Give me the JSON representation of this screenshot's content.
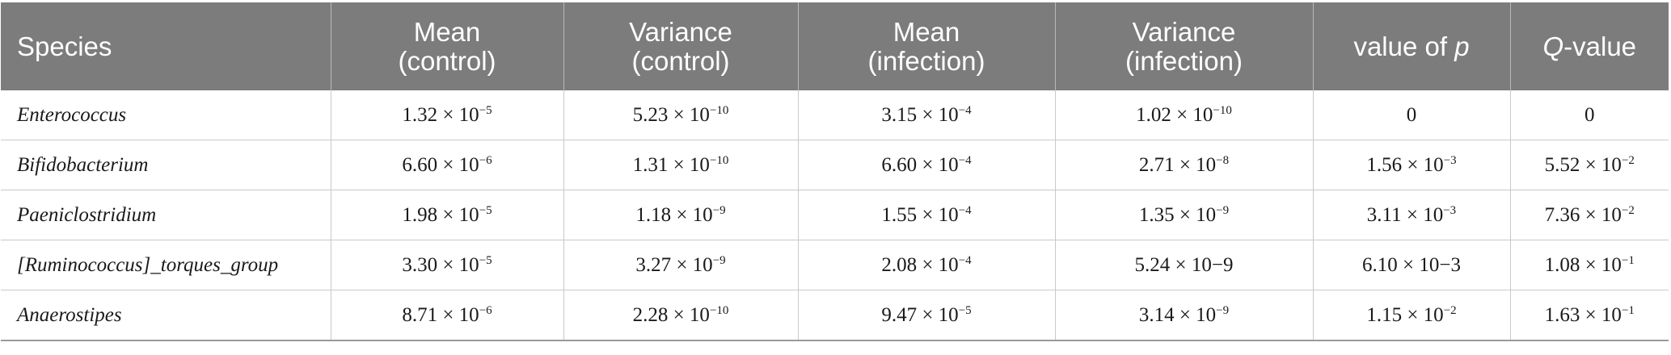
{
  "table": {
    "headers": [
      {
        "line1": "Species",
        "line2": ""
      },
      {
        "line1": "Mean",
        "line2": "(control)"
      },
      {
        "line1": "Variance",
        "line2": "(control)"
      },
      {
        "line1": "Mean",
        "line2": "(infection)"
      },
      {
        "line1": "Variance",
        "line2": "(infection)"
      },
      {
        "pre": "value of ",
        "ital": "p",
        "post": ""
      },
      {
        "pre": "",
        "ital": "Q",
        "post": "-value"
      }
    ],
    "rows": [
      {
        "species": "Enterococcus",
        "cells": [
          {
            "m": "1.32 × 10",
            "e": "−5"
          },
          {
            "m": "5.23 × 10",
            "e": "−10"
          },
          {
            "m": "3.15 × 10",
            "e": "−4"
          },
          {
            "m": "1.02 × 10",
            "e": "−10"
          },
          {
            "m": "0",
            "e": ""
          },
          {
            "m": "0",
            "e": ""
          }
        ]
      },
      {
        "species": "Bifidobacterium",
        "cells": [
          {
            "m": "6.60 × 10",
            "e": "−6"
          },
          {
            "m": "1.31 × 10",
            "e": "−10"
          },
          {
            "m": "6.60 × 10",
            "e": "−4"
          },
          {
            "m": "2.71 × 10",
            "e": "−8"
          },
          {
            "m": "1.56 × 10",
            "e": "−3"
          },
          {
            "m": "5.52 × 10",
            "e": "−2"
          }
        ]
      },
      {
        "species": "Paeniclostridium",
        "cells": [
          {
            "m": "1.98 × 10",
            "e": "−5"
          },
          {
            "m": "1.18 × 10",
            "e": "−9"
          },
          {
            "m": "1.55 × 10",
            "e": "−4"
          },
          {
            "m": "1.35 × 10",
            "e": "−9"
          },
          {
            "m": "3.11 × 10",
            "e": "−3"
          },
          {
            "m": "7.36 × 10",
            "e": "−2"
          }
        ]
      },
      {
        "species": "[Ruminococcus]_torques_group",
        "cells": [
          {
            "m": "3.30 × 10",
            "e": "−5"
          },
          {
            "m": "3.27 × 10",
            "e": "−9"
          },
          {
            "m": "2.08 × 10",
            "e": "−4"
          },
          {
            "m": "5.24 × 10−9",
            "e": ""
          },
          {
            "m": "6.10 × 10−3",
            "e": ""
          },
          {
            "m": "1.08 × 10",
            "e": "−1"
          }
        ]
      },
      {
        "species": "Anaerostipes",
        "cells": [
          {
            "m": "8.71 × 10",
            "e": "−6"
          },
          {
            "m": "2.28 × 10",
            "e": "−10"
          },
          {
            "m": "9.47 × 10",
            "e": "−5"
          },
          {
            "m": "3.14 × 10",
            "e": "−9"
          },
          {
            "m": "1.15 × 10",
            "e": "−2"
          },
          {
            "m": "1.63 × 10",
            "e": "−1"
          }
        ]
      }
    ]
  }
}
